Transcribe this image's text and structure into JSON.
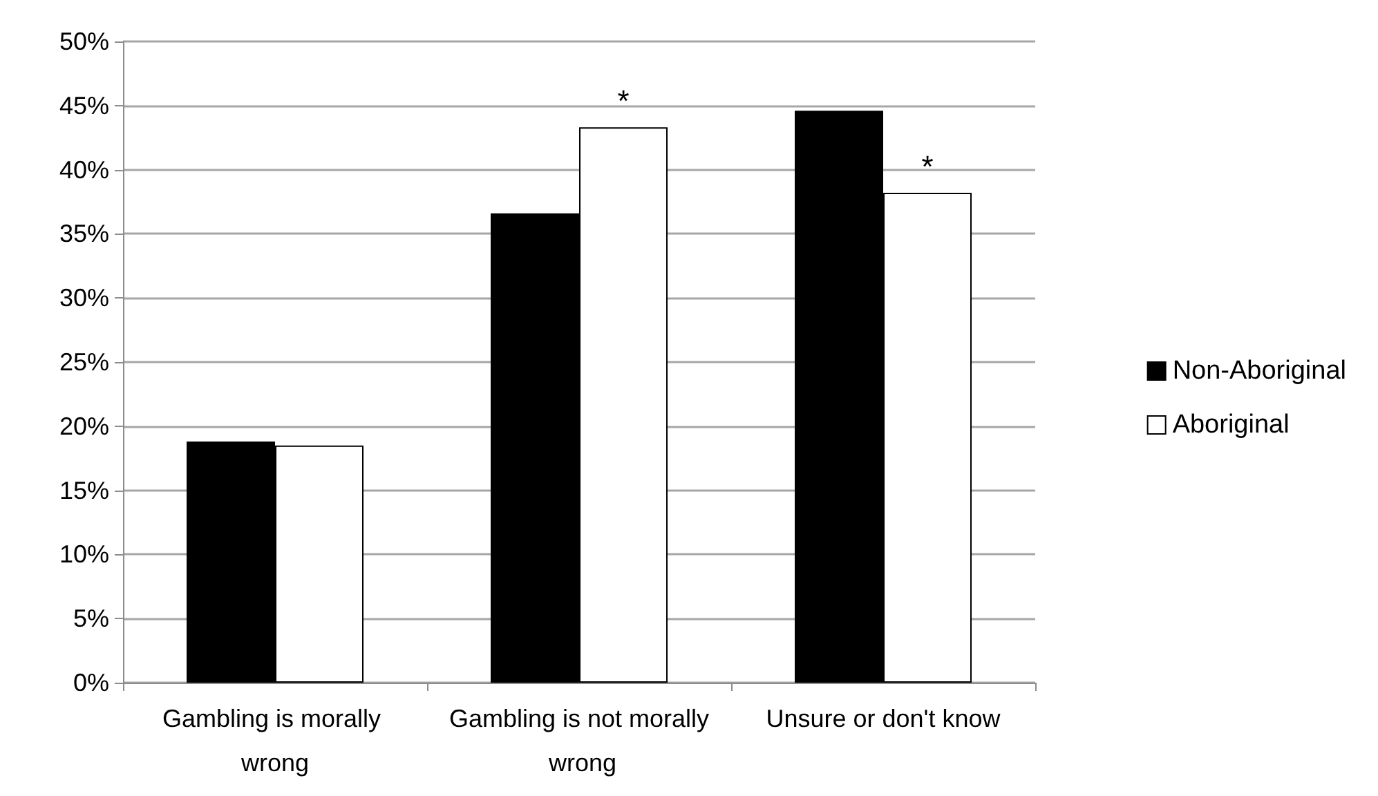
{
  "chart_data": {
    "type": "bar",
    "categories": [
      "Gambling is morally wrong",
      "Gambling is not morally wrong",
      "Unsure or don't know"
    ],
    "series": [
      {
        "name": "Non-Aboriginal",
        "color": "#000000",
        "values": [
          18.8,
          36.6,
          44.6
        ]
      },
      {
        "name": "Aboriginal",
        "color": "#ffffff",
        "values": [
          18.5,
          43.3,
          38.2
        ]
      }
    ],
    "ylim": [
      0,
      50
    ],
    "yticks": [
      {
        "value": 0,
        "label": "0%"
      },
      {
        "value": 5,
        "label": "5%"
      },
      {
        "value": 10,
        "label": "10%"
      },
      {
        "value": 15,
        "label": "15%"
      },
      {
        "value": 20,
        "label": "20%"
      },
      {
        "value": 25,
        "label": "25%"
      },
      {
        "value": 30,
        "label": "30%"
      },
      {
        "value": 35,
        "label": "35%"
      },
      {
        "value": 40,
        "label": "40%"
      },
      {
        "value": 45,
        "label": "45%"
      },
      {
        "value": 50,
        "label": "50%"
      }
    ],
    "annotations": [
      {
        "text": "*",
        "x": "Gambling is not morally wrong",
        "y": 43.3
      },
      {
        "text": "*",
        "x": "Unsure or don't know",
        "y": 38.2
      }
    ],
    "grid": "y",
    "legend": "right"
  }
}
